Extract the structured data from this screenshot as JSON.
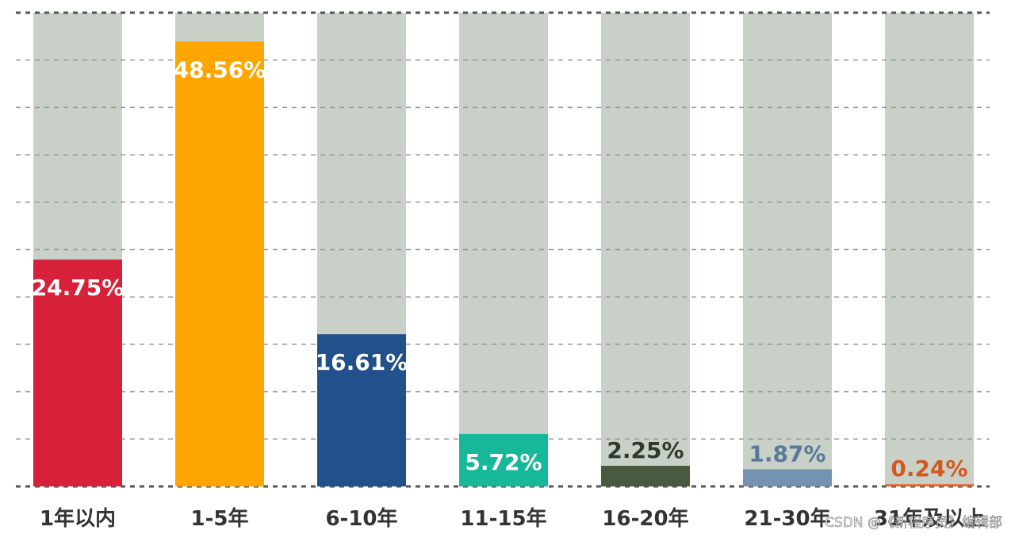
{
  "chart_data": {
    "type": "bar",
    "categories": [
      "1年以内",
      "1-5年",
      "6-10年",
      "11-15年",
      "16-20年",
      "21-30年",
      "31年及以上"
    ],
    "values": [
      24.75,
      48.56,
      16.61,
      5.72,
      2.25,
      1.87,
      0.24
    ],
    "value_labels": [
      "24.75%",
      "48.56%",
      "16.61%",
      "5.72%",
      "2.25%",
      "1.87%",
      "0.24%"
    ],
    "colors": [
      "#d7213a",
      "#ffa500",
      "#22508a",
      "#17b89a",
      "#4a5a3f",
      "#7592b0",
      "#e8622a"
    ],
    "label_colors": [
      "#ffffff",
      "#ffffff",
      "#ffffff",
      "#ffffff",
      "#2f3a28",
      "#5a7a99",
      "#d4581b"
    ],
    "background_color": "#c8d0c8",
    "ylim": [
      0,
      51.7
    ],
    "yticks": [
      0,
      5.17,
      10.34,
      15.51,
      20.68,
      25.85,
      31.02,
      36.19,
      41.36,
      46.53,
      51.7
    ],
    "grid": true,
    "annotation": "CSDN @《新程序员》编辑部"
  }
}
